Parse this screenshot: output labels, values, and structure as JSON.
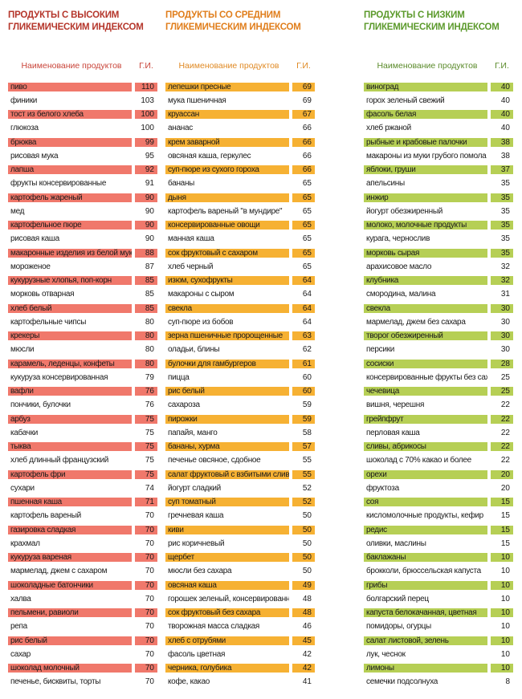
{
  "high": {
    "title_line1": "ПРОДУКТЫ С ВЫСОКИМ",
    "title_line2": "ГЛИКЕМИЧЕСКИМ ИНДЕКСОМ",
    "header_name": "Наименование продуктов",
    "header_gi": "Г.И.",
    "highlight_color": "#f0786b",
    "items": [
      {
        "name": "пиво",
        "gi": "110",
        "hl": true
      },
      {
        "name": "финики",
        "gi": "103",
        "hl": false
      },
      {
        "name": "тост из белого хлеба",
        "gi": "100",
        "hl": true
      },
      {
        "name": "глюкоза",
        "gi": "100",
        "hl": false
      },
      {
        "name": "брюква",
        "gi": "99",
        "hl": true
      },
      {
        "name": "рисовая мука",
        "gi": "95",
        "hl": false
      },
      {
        "name": "лапша",
        "gi": "92",
        "hl": true
      },
      {
        "name": "фрукты консервированные",
        "gi": "91",
        "hl": false
      },
      {
        "name": "картофель жареный",
        "gi": "90",
        "hl": true
      },
      {
        "name": "мед",
        "gi": "90",
        "hl": false
      },
      {
        "name": "картофельное пюре",
        "gi": "90",
        "hl": true
      },
      {
        "name": "рисовая каша",
        "gi": "90",
        "hl": false
      },
      {
        "name": "макаронные изделия из белой муки",
        "gi": "88",
        "hl": true
      },
      {
        "name": "мороженое",
        "gi": "87",
        "hl": false
      },
      {
        "name": "кукурузные хлопья, поп-корн",
        "gi": "85",
        "hl": true
      },
      {
        "name": "морковь отварная",
        "gi": "85",
        "hl": false
      },
      {
        "name": "хлеб белый",
        "gi": "85",
        "hl": true
      },
      {
        "name": "картофельные чипсы",
        "gi": "80",
        "hl": false
      },
      {
        "name": "крекеры",
        "gi": "80",
        "hl": true
      },
      {
        "name": "мюсли",
        "gi": "80",
        "hl": false
      },
      {
        "name": "карамель, леденцы, конфеты",
        "gi": "80",
        "hl": true
      },
      {
        "name": "кукуруза консервированная",
        "gi": "79",
        "hl": false
      },
      {
        "name": "вафли",
        "gi": "76",
        "hl": true
      },
      {
        "name": "пончики, булочки",
        "gi": "76",
        "hl": false
      },
      {
        "name": "арбуз",
        "gi": "75",
        "hl": true
      },
      {
        "name": "кабачки",
        "gi": "75",
        "hl": false
      },
      {
        "name": "тыква",
        "gi": "75",
        "hl": true
      },
      {
        "name": "хлеб длинный французский",
        "gi": "75",
        "hl": false
      },
      {
        "name": "картофель фри",
        "gi": "75",
        "hl": true
      },
      {
        "name": "сухари",
        "gi": "74",
        "hl": false
      },
      {
        "name": "пшенная каша",
        "gi": "71",
        "hl": true
      },
      {
        "name": "картофель вареный",
        "gi": "70",
        "hl": false
      },
      {
        "name": "газировка сладкая",
        "gi": "70",
        "hl": true
      },
      {
        "name": "крахмал",
        "gi": "70",
        "hl": false
      },
      {
        "name": "кукуруза вареная",
        "gi": "70",
        "hl": true
      },
      {
        "name": "мармелад, джем с сахаром",
        "gi": "70",
        "hl": false
      },
      {
        "name": "шоколадные батончики",
        "gi": "70",
        "hl": true
      },
      {
        "name": "халва",
        "gi": "70",
        "hl": false
      },
      {
        "name": "пельмени, равиоли",
        "gi": "70",
        "hl": true
      },
      {
        "name": "репа",
        "gi": "70",
        "hl": false
      },
      {
        "name": "рис белый",
        "gi": "70",
        "hl": true
      },
      {
        "name": "сахар",
        "gi": "70",
        "hl": false
      },
      {
        "name": "шоколад молочный",
        "gi": "70",
        "hl": true
      },
      {
        "name": "печенье, бисквиты, торты",
        "gi": "70",
        "hl": false
      }
    ]
  },
  "mid": {
    "title_line1": "ПРОДУКТЫ СО СРЕДНИМ",
    "title_line2": "ГЛИКЕМИЧЕСКИМ ИНДЕКСОМ",
    "header_name": "Наименование продуктов",
    "header_gi": "Г.И.",
    "highlight_color": "#f6b133",
    "items": [
      {
        "name": "лепешки пресные",
        "gi": "69",
        "hl": true
      },
      {
        "name": "мука пшеничная",
        "gi": "69",
        "hl": false
      },
      {
        "name": "круассан",
        "gi": "67",
        "hl": true
      },
      {
        "name": "ананас",
        "gi": "66",
        "hl": false
      },
      {
        "name": "крем заварной",
        "gi": "66",
        "hl": true
      },
      {
        "name": "овсяная каша, геркулес",
        "gi": "66",
        "hl": false
      },
      {
        "name": "суп-пюре из сухого гороха",
        "gi": "66",
        "hl": true
      },
      {
        "name": "бананы",
        "gi": "65",
        "hl": false
      },
      {
        "name": "дыня",
        "gi": "65",
        "hl": true
      },
      {
        "name": "картофель вареный \"в мундире\"",
        "gi": "65",
        "hl": false
      },
      {
        "name": "консервированные овощи",
        "gi": "65",
        "hl": true
      },
      {
        "name": "манная каша",
        "gi": "65",
        "hl": false
      },
      {
        "name": "сок фруктовый с сахаром",
        "gi": "65",
        "hl": true
      },
      {
        "name": "хлеб черный",
        "gi": "65",
        "hl": false
      },
      {
        "name": "изюм, сухофрукты",
        "gi": "64",
        "hl": true
      },
      {
        "name": "макароны с сыром",
        "gi": "64",
        "hl": false
      },
      {
        "name": "свекла",
        "gi": "64",
        "hl": true
      },
      {
        "name": "суп-пюре из бобов",
        "gi": "64",
        "hl": false
      },
      {
        "name": "зерна пшеничные пророщенные",
        "gi": "63",
        "hl": true
      },
      {
        "name": "оладьи, блины",
        "gi": "62",
        "hl": false
      },
      {
        "name": "булочки для гамбургеров",
        "gi": "61",
        "hl": true
      },
      {
        "name": "пицца",
        "gi": "60",
        "hl": false
      },
      {
        "name": "рис белый",
        "gi": "60",
        "hl": true
      },
      {
        "name": "сахароза",
        "gi": "59",
        "hl": false
      },
      {
        "name": "пирожки",
        "gi": "59",
        "hl": true
      },
      {
        "name": "папайя, манго",
        "gi": "58",
        "hl": false
      },
      {
        "name": "бананы, хурма",
        "gi": "57",
        "hl": true
      },
      {
        "name": "печенье овсяное, сдобное",
        "gi": "55",
        "hl": false
      },
      {
        "name": "салат фруктовый с взбитыми сливками",
        "gi": "55",
        "hl": true
      },
      {
        "name": "йогурт сладкий",
        "gi": "52",
        "hl": false
      },
      {
        "name": "суп томатный",
        "gi": "52",
        "hl": true
      },
      {
        "name": "гречневая каша",
        "gi": "50",
        "hl": false
      },
      {
        "name": "киви",
        "gi": "50",
        "hl": true
      },
      {
        "name": "рис коричневый",
        "gi": "50",
        "hl": false
      },
      {
        "name": "щербет",
        "gi": "50",
        "hl": true
      },
      {
        "name": "мюсли без сахара",
        "gi": "50",
        "hl": false
      },
      {
        "name": "овсяная каша",
        "gi": "49",
        "hl": true
      },
      {
        "name": "горошек зеленый, консервированный",
        "gi": "48",
        "hl": false
      },
      {
        "name": "сок фруктовый без сахара",
        "gi": "48",
        "hl": true
      },
      {
        "name": "творожная масса сладкая",
        "gi": "46",
        "hl": false
      },
      {
        "name": "хлеб с отрубями",
        "gi": "45",
        "hl": true
      },
      {
        "name": "фасоль цветная",
        "gi": "42",
        "hl": false
      },
      {
        "name": "черника, голубика",
        "gi": "42",
        "hl": true
      },
      {
        "name": "кофе, какао",
        "gi": "41",
        "hl": false
      }
    ]
  },
  "low": {
    "title_line1": "ПРОДУКТЫ С НИЗКИМ",
    "title_line2": "ГЛИКЕМИЧЕСКИМ ИНДЕКСОМ",
    "header_name": "Наименование продуктов",
    "header_gi": "Г.И.",
    "highlight_color": "#b6cf55",
    "items": [
      {
        "name": "виноград",
        "gi": "40",
        "hl": true
      },
      {
        "name": "горох зеленый свежий",
        "gi": "40",
        "hl": false
      },
      {
        "name": "фасоль белая",
        "gi": "40",
        "hl": true
      },
      {
        "name": "хлеб ржаной",
        "gi": "40",
        "hl": false
      },
      {
        "name": "рыбные и крабовые палочки",
        "gi": "38",
        "hl": true
      },
      {
        "name": "макароны из муки грубого помола",
        "gi": "38",
        "hl": false
      },
      {
        "name": "яблоки, груши",
        "gi": "37",
        "hl": true
      },
      {
        "name": "апельсины",
        "gi": "35",
        "hl": false
      },
      {
        "name": "инжир",
        "gi": "35",
        "hl": true
      },
      {
        "name": "йогурт обезжиренный",
        "gi": "35",
        "hl": false
      },
      {
        "name": "молоко, молочные продукты",
        "gi": "35",
        "hl": true
      },
      {
        "name": "курага, чернослив",
        "gi": "35",
        "hl": false
      },
      {
        "name": "морковь сырая",
        "gi": "35",
        "hl": true
      },
      {
        "name": "арахисовое масло",
        "gi": "32",
        "hl": false
      },
      {
        "name": "клубника",
        "gi": "32",
        "hl": true
      },
      {
        "name": "смородина, малина",
        "gi": "31",
        "hl": false
      },
      {
        "name": "свекла",
        "gi": "30",
        "hl": true
      },
      {
        "name": "мармелад, джем без сахара",
        "gi": "30",
        "hl": false
      },
      {
        "name": "творог обезжиренный",
        "gi": "30",
        "hl": true
      },
      {
        "name": "персики",
        "gi": "30",
        "hl": false
      },
      {
        "name": "сосиски",
        "gi": "28",
        "hl": true
      },
      {
        "name": "консервированные фрукты без сахара",
        "gi": "25",
        "hl": false
      },
      {
        "name": "чечевица",
        "gi": "25",
        "hl": true
      },
      {
        "name": "вишня, черешня",
        "gi": "22",
        "hl": false
      },
      {
        "name": "грейпфрут",
        "gi": "22",
        "hl": true
      },
      {
        "name": "перловая каша",
        "gi": "22",
        "hl": false
      },
      {
        "name": "сливы, абрикосы",
        "gi": "22",
        "hl": true
      },
      {
        "name": "шоколад с 70% какао и более",
        "gi": "22",
        "hl": false
      },
      {
        "name": "орехи",
        "gi": "20",
        "hl": true
      },
      {
        "name": "фруктоза",
        "gi": "20",
        "hl": false
      },
      {
        "name": "соя",
        "gi": "15",
        "hl": true
      },
      {
        "name": "кисломолочные продукты, кефир",
        "gi": "15",
        "hl": false
      },
      {
        "name": "редис",
        "gi": "15",
        "hl": true
      },
      {
        "name": "оливки, маслины",
        "gi": "15",
        "hl": false
      },
      {
        "name": "баклажаны",
        "gi": "10",
        "hl": true
      },
      {
        "name": "брокколи, брюссельская капуста",
        "gi": "10",
        "hl": false
      },
      {
        "name": "грибы",
        "gi": "10",
        "hl": true
      },
      {
        "name": "болгарский перец",
        "gi": "10",
        "hl": false
      },
      {
        "name": "капуста белокачанная, цветная",
        "gi": "10",
        "hl": true
      },
      {
        "name": "помидоры, огурцы",
        "gi": "10",
        "hl": false
      },
      {
        "name": "салат листовой, зелень",
        "gi": "10",
        "hl": true
      },
      {
        "name": "лук, чеснок",
        "gi": "10",
        "hl": false
      },
      {
        "name": "лимоны",
        "gi": "10",
        "hl": true
      },
      {
        "name": "семечки подсолнуха",
        "gi": "8",
        "hl": false
      }
    ]
  }
}
